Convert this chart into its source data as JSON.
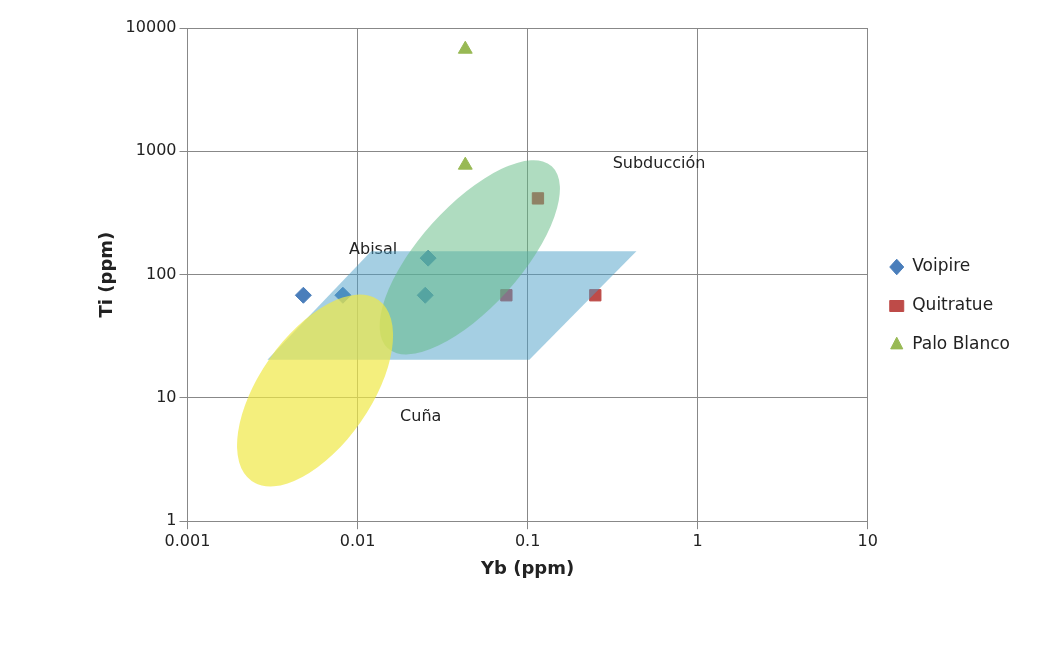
{
  "chart_data": {
    "type": "scatter",
    "xlabel": "Yb (ppm)",
    "ylabel": "Ti (ppm)",
    "log": "xy",
    "grid": true,
    "legend": "right",
    "xlim": [
      0.001,
      10
    ],
    "xticks": [
      0.001,
      0.01,
      0.1,
      1,
      10
    ],
    "ylim": [
      1,
      10000
    ],
    "yticks": [
      1,
      10,
      100,
      1000,
      10000
    ],
    "annotations": [
      "Abisal",
      "Subducción",
      "Cuña"
    ],
    "series": [
      {
        "name": "Voipire",
        "color": "#4a7ebb",
        "marker": "diamond",
        "x": [
          0.0048,
          0.0082,
          0.025,
          0.026
        ],
        "values": [
          68,
          68,
          68,
          136
        ]
      },
      {
        "name": "Quitratue",
        "color": "#be4b48",
        "marker": "square",
        "x": [
          0.075,
          0.25,
          0.115
        ],
        "values": [
          68,
          68,
          415
        ]
      },
      {
        "name": "Palo Blanco",
        "color": "#98b954",
        "marker": "triangle",
        "x": [
          0.043,
          0.043
        ],
        "values": [
          6730,
          772
        ]
      }
    ]
  }
}
